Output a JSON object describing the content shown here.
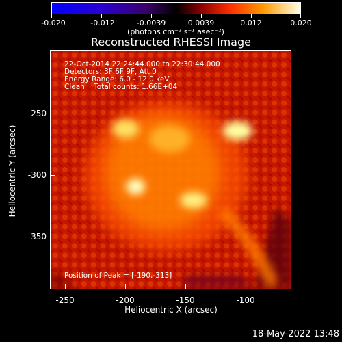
{
  "colorbar": {
    "ticks": [
      "-0.020",
      "-0.012",
      "-0.0039",
      "0.0039",
      "0.012",
      "0.020"
    ],
    "units": "(photons cm⁻² s⁻¹ asec⁻²)"
  },
  "title": "Reconstructed RHESSI Image",
  "info": {
    "time": "22-Oct-2014 22:24:44.000 to 22:30:44.000",
    "detectors": "Detectors: 3F 6F 9F, Att 0",
    "energy": "Energy Range: 6.0 - 12.0 keV",
    "clean": "Clean    Total counts: 1.66E+04",
    "peak": "Position of Peak = [-190,-313]"
  },
  "axes": {
    "xlabel": "Heliocentric X (arcsec)",
    "ylabel": "Heliocentric Y (arcsec)",
    "xticks": [
      "-250",
      "-200",
      "-150",
      "-100"
    ],
    "yticks": [
      "-250",
      "-300",
      "-350"
    ]
  },
  "datestamp": "18-May-2022 13:48",
  "colors": {
    "background": "#000000",
    "text": "#ffffff"
  }
}
